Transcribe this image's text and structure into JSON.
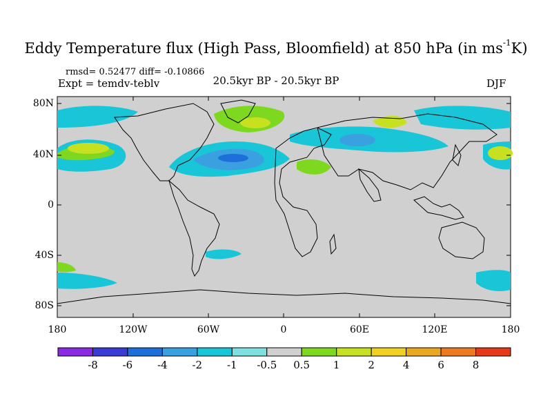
{
  "title_main": "Eddy Temperature flux (High Pass, Bloomfield) at 850 hPa (in ms",
  "title_sup": "-1",
  "title_end": "K)",
  "stats": "rmsd= 0.52477  diff= -0.10866",
  "expt": "Expt = temdv-teblv",
  "period": "20.5kyr BP - 20.5kyr BP",
  "season": "DJF",
  "map": {
    "ocean_color": "#d0d0d0",
    "coast_color": "#000000",
    "lon_range": [
      -180,
      180
    ],
    "lat_range": [
      -90,
      90
    ],
    "y_ticks": [
      "80N",
      "40N",
      "0",
      "40S",
      "80S"
    ],
    "x_ticks": [
      "180",
      "120W",
      "60W",
      "0",
      "60E",
      "120E",
      "180"
    ]
  },
  "colorbar": {
    "colors": [
      "#8a2be2",
      "#3b3bd6",
      "#1e6fd9",
      "#3aa0e0",
      "#18c6d8",
      "#7fe0e0",
      "#d0d0d0",
      "#7ed820",
      "#c7e020",
      "#f0d020",
      "#e8a820",
      "#ec7a20",
      "#e43a18"
    ],
    "labels": [
      "-8",
      "-6",
      "-4",
      "-2",
      "-1",
      "-0.5",
      "0.5",
      "1",
      "2",
      "4",
      "6",
      "8"
    ]
  }
}
